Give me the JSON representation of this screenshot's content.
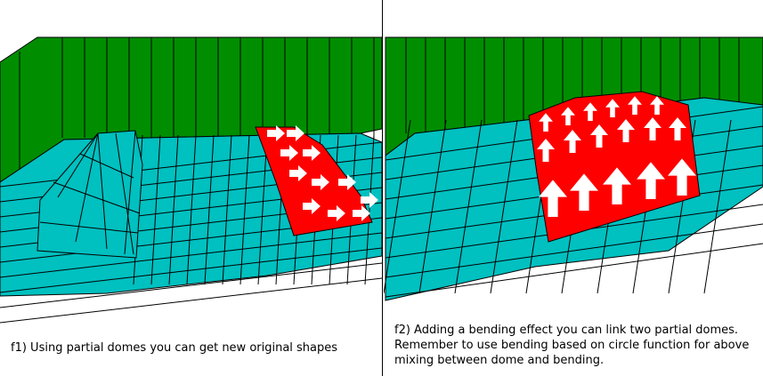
{
  "captions": {
    "f1": "f1) Using partial domes you can get new original shapes",
    "f2": "f2) Adding a bending effect you can link two partial domes. Remember to use bending based on circle function for above mixing between dome and bending."
  },
  "colors": {
    "wall": "#008e00",
    "floor": "#00c0c0",
    "highlight": "#ff0000",
    "arrow": "#ffffff",
    "line": "#000000"
  }
}
